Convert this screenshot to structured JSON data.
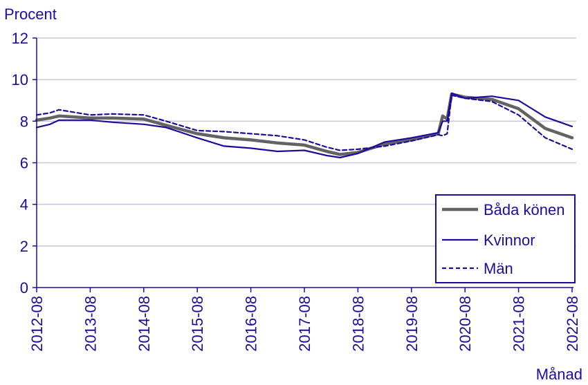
{
  "colors": {
    "text": "#1b0c9c",
    "grid": "#c9c5e0",
    "axis": "#1b0c9c",
    "both": "#636363",
    "women": "#1b0c9c",
    "men": "#1b0c9c"
  },
  "chart_data": {
    "type": "line",
    "ylabel": "Procent",
    "xlabel": "Månad",
    "ylim": [
      0,
      12
    ],
    "yticks": [
      0,
      2,
      4,
      6,
      8,
      10,
      12
    ],
    "xticks": [
      "2012-08",
      "2013-08",
      "2014-08",
      "2015-08",
      "2016-08",
      "2017-08",
      "2018-08",
      "2019-08",
      "2020-08",
      "2021-08",
      "2022-08"
    ],
    "grid": true,
    "legend_position": "bottom-right",
    "series": [
      {
        "name": "Båda könen",
        "style": "thick",
        "points": [
          [
            "2012-08",
            8.05
          ],
          [
            "2012-11",
            8.15
          ],
          [
            "2013-01",
            8.25
          ],
          [
            "2013-08",
            8.15
          ],
          [
            "2014-01",
            8.15
          ],
          [
            "2014-08",
            8.1
          ],
          [
            "2015-01",
            7.8
          ],
          [
            "2015-08",
            7.4
          ],
          [
            "2016-02",
            7.2
          ],
          [
            "2016-08",
            7.1
          ],
          [
            "2017-02",
            6.95
          ],
          [
            "2017-08",
            6.85
          ],
          [
            "2018-01",
            6.55
          ],
          [
            "2018-04",
            6.4
          ],
          [
            "2018-08",
            6.5
          ],
          [
            "2019-02",
            6.9
          ],
          [
            "2019-08",
            7.1
          ],
          [
            "2020-02",
            7.4
          ],
          [
            "2020-03",
            8.25
          ],
          [
            "2020-04",
            8.1
          ],
          [
            "2020-05",
            9.3
          ],
          [
            "2020-08",
            9.15
          ],
          [
            "2021-02",
            9.05
          ],
          [
            "2021-08",
            8.6
          ],
          [
            "2022-02",
            7.65
          ],
          [
            "2022-08",
            7.2
          ]
        ]
      },
      {
        "name": "Kvinnor",
        "style": "solid",
        "points": [
          [
            "2012-08",
            7.7
          ],
          [
            "2012-11",
            7.85
          ],
          [
            "2013-01",
            8.05
          ],
          [
            "2013-08",
            8.05
          ],
          [
            "2014-01",
            7.95
          ],
          [
            "2014-08",
            7.85
          ],
          [
            "2015-01",
            7.7
          ],
          [
            "2015-08",
            7.2
          ],
          [
            "2016-02",
            6.8
          ],
          [
            "2016-08",
            6.7
          ],
          [
            "2017-02",
            6.55
          ],
          [
            "2017-08",
            6.6
          ],
          [
            "2018-01",
            6.35
          ],
          [
            "2018-04",
            6.25
          ],
          [
            "2018-08",
            6.45
          ],
          [
            "2019-02",
            7.0
          ],
          [
            "2019-08",
            7.2
          ],
          [
            "2020-02",
            7.45
          ],
          [
            "2020-03",
            8.0
          ],
          [
            "2020-04",
            8.0
          ],
          [
            "2020-05",
            9.35
          ],
          [
            "2020-08",
            9.1
          ],
          [
            "2021-02",
            9.2
          ],
          [
            "2021-08",
            9.0
          ],
          [
            "2022-02",
            8.2
          ],
          [
            "2022-08",
            7.75
          ]
        ]
      },
      {
        "name": "Män",
        "style": "dashed",
        "points": [
          [
            "2012-08",
            8.3
          ],
          [
            "2012-11",
            8.4
          ],
          [
            "2013-01",
            8.55
          ],
          [
            "2013-08",
            8.3
          ],
          [
            "2014-01",
            8.35
          ],
          [
            "2014-08",
            8.3
          ],
          [
            "2015-01",
            8.0
          ],
          [
            "2015-08",
            7.55
          ],
          [
            "2016-02",
            7.5
          ],
          [
            "2016-08",
            7.4
          ],
          [
            "2017-02",
            7.3
          ],
          [
            "2017-08",
            7.1
          ],
          [
            "2018-01",
            6.75
          ],
          [
            "2018-04",
            6.6
          ],
          [
            "2018-08",
            6.65
          ],
          [
            "2019-02",
            6.8
          ],
          [
            "2019-08",
            7.05
          ],
          [
            "2020-02",
            7.35
          ],
          [
            "2020-03",
            7.3
          ],
          [
            "2020-04",
            7.4
          ],
          [
            "2020-05",
            9.25
          ],
          [
            "2020-08",
            9.1
          ],
          [
            "2021-02",
            8.95
          ],
          [
            "2021-08",
            8.3
          ],
          [
            "2022-02",
            7.2
          ],
          [
            "2022-08",
            6.65
          ]
        ]
      }
    ]
  }
}
